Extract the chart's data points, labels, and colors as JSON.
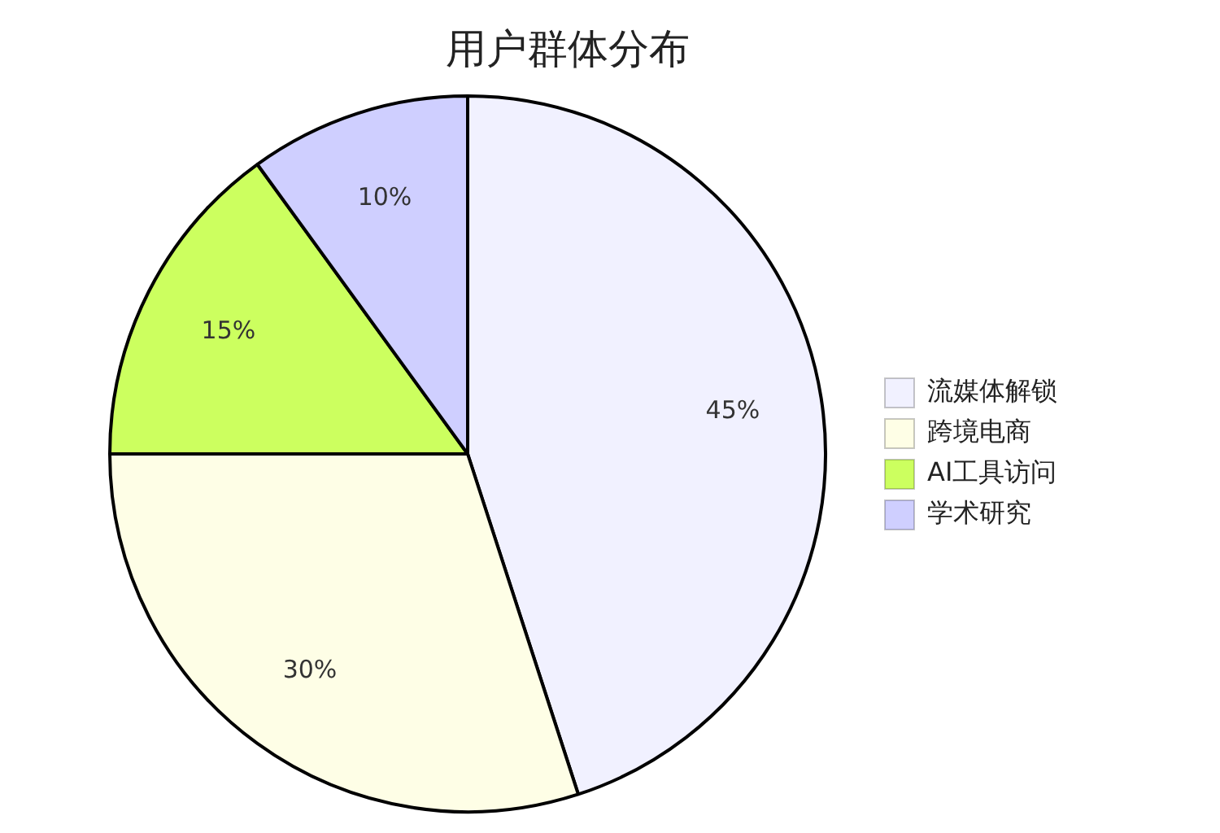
{
  "chart_data": {
    "type": "pie",
    "title": "用户群体分布",
    "categories": [
      "流媒体解锁",
      "跨境电商",
      "AI工具访问",
      "学术研究"
    ],
    "values": [
      45,
      30,
      15,
      10
    ],
    "colors": [
      "#f1f1ff",
      "#fefee6",
      "#ccff5f",
      "#cfcfff"
    ],
    "value_labels": [
      "45%",
      "30%",
      "15%",
      "10%"
    ],
    "legend": "right"
  }
}
